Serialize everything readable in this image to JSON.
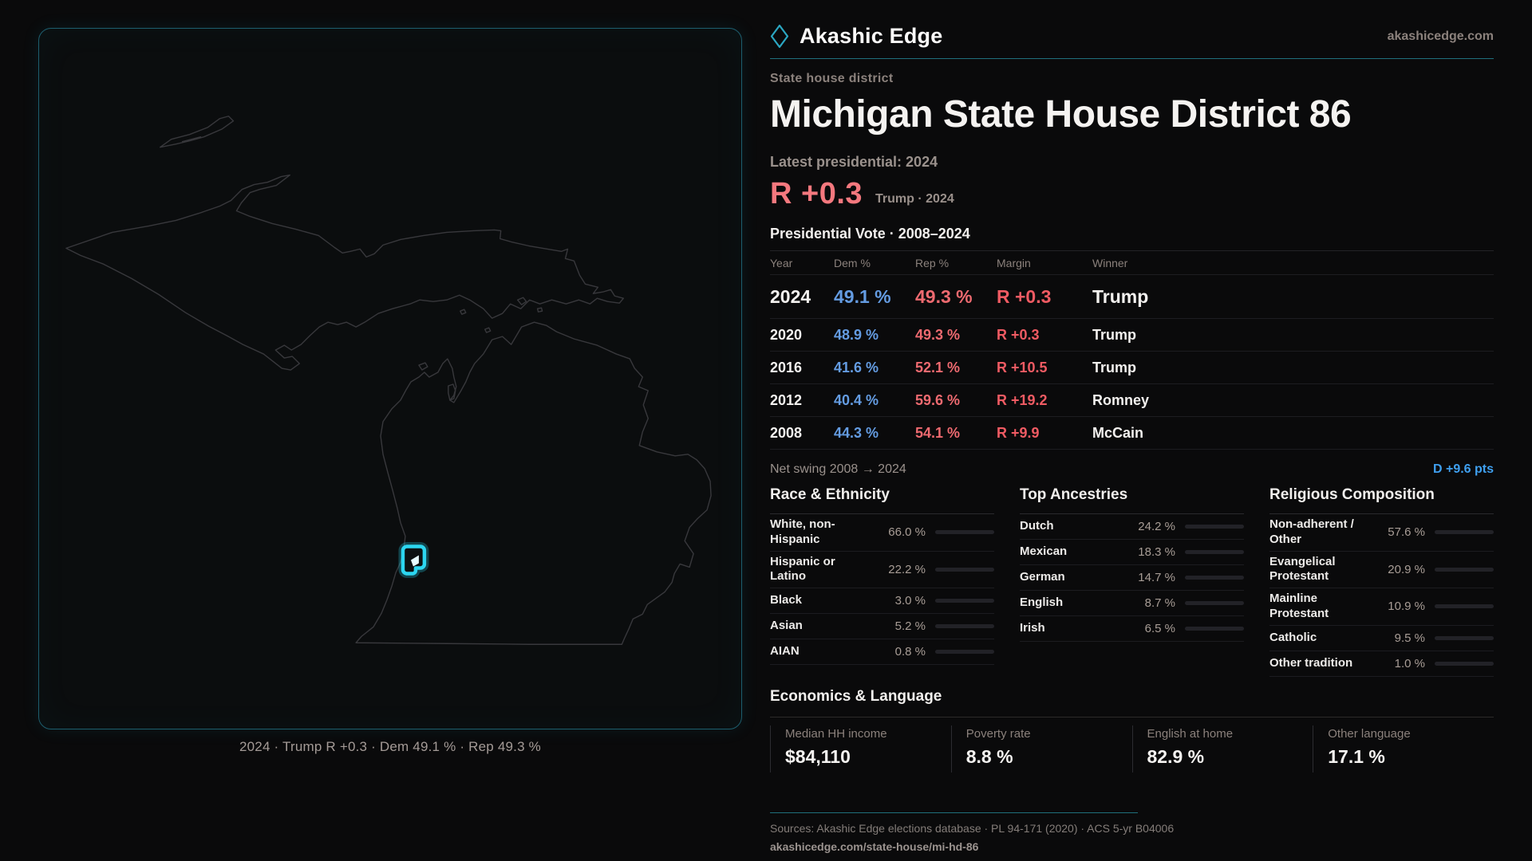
{
  "brand": {
    "name": "Akashic Edge",
    "site": "akashicedge.com"
  },
  "page": {
    "eyebrow": "State house district",
    "title": "Michigan State House District 86"
  },
  "headline": {
    "label": "Latest presidential: 2024",
    "stat": "R +0.3",
    "sub": "Trump · 2024"
  },
  "vote_table": {
    "title": "Presidential Vote · 2008–2024",
    "columns": [
      "Year",
      "Dem %",
      "Rep %",
      "Margin",
      "Winner"
    ],
    "rows": [
      {
        "year": "2024",
        "dem": "49.1 %",
        "rep": "49.3 %",
        "margin": "R +0.3",
        "winner": "Trump"
      },
      {
        "year": "2020",
        "dem": "48.9 %",
        "rep": "49.3 %",
        "margin": "R +0.3",
        "winner": "Trump"
      },
      {
        "year": "2016",
        "dem": "41.6 %",
        "rep": "52.1 %",
        "margin": "R +10.5",
        "winner": "Trump"
      },
      {
        "year": "2012",
        "dem": "40.4 %",
        "rep": "59.6 %",
        "margin": "R +19.2",
        "winner": "Romney"
      },
      {
        "year": "2008",
        "dem": "44.3 %",
        "rep": "54.1 %",
        "margin": "R +9.9",
        "winner": "McCain"
      }
    ]
  },
  "net_swing": {
    "label": "Net swing 2008 → 2024",
    "value": "D +9.6 pts"
  },
  "race": {
    "title": "Race & Ethnicity",
    "rows": [
      {
        "label": "White, non-Hispanic",
        "value": "66.0 %",
        "pct": 66.0,
        "color": "#9db3d2"
      },
      {
        "label": "Hispanic or Latino",
        "value": "22.2 %",
        "pct": 22.2,
        "color": "#e7a63a"
      },
      {
        "label": "Black",
        "value": "3.0 %",
        "pct": 3.0,
        "color": "#8678e0"
      },
      {
        "label": "Asian",
        "value": "5.2 %",
        "pct": 5.2,
        "color": "#2fbf8f"
      },
      {
        "label": "AIAN",
        "value": "0.8 %",
        "pct": 0.8,
        "color": "#a9561f"
      }
    ]
  },
  "ancestries": {
    "title": "Top Ancestries",
    "rows": [
      {
        "label": "Dutch",
        "value": "24.2 %",
        "pct": 24.2,
        "color": "#8fa6c4"
      },
      {
        "label": "Mexican",
        "value": "18.3 %",
        "pct": 18.3,
        "color": "#e7a63a"
      },
      {
        "label": "German",
        "value": "14.7 %",
        "pct": 14.7,
        "color": "#8fa6c4"
      },
      {
        "label": "English",
        "value": "8.7 %",
        "pct": 8.7,
        "color": "#9fb2cc"
      },
      {
        "label": "Irish",
        "value": "6.5 %",
        "pct": 6.5,
        "color": "#9fb2cc"
      }
    ]
  },
  "religion": {
    "title": "Religious Composition",
    "rows": [
      {
        "label": "Non-adherent / Other",
        "value": "57.6 %",
        "pct": 57.6,
        "color": "#5b6474"
      },
      {
        "label": "Evangelical Protestant",
        "value": "20.9 %",
        "pct": 20.9,
        "color": "#e87e84"
      },
      {
        "label": "Mainline Protestant",
        "value": "10.9 %",
        "pct": 10.9,
        "color": "#4d9cf0"
      },
      {
        "label": "Catholic",
        "value": "9.5 %",
        "pct": 9.5,
        "color": "#eab52f"
      },
      {
        "label": "Other tradition",
        "value": "1.0 %",
        "pct": 1.0,
        "color": "#d0d0d0"
      }
    ]
  },
  "economics": {
    "title": "Economics & Language",
    "stats": [
      {
        "label": "Median HH income",
        "value": "$84,110"
      },
      {
        "label": "Poverty rate",
        "value": "8.8 %"
      },
      {
        "label": "English at home",
        "value": "82.9 %"
      },
      {
        "label": "Other language",
        "value": "17.1 %"
      }
    ]
  },
  "footer": {
    "sources": "Sources: Akashic Edge elections database · PL 94-171 (2020) · ACS 5-yr B04006",
    "url": "akashicedge.com/state-house/mi-hd-86"
  },
  "map": {
    "caption": "2024 · Trump R +0.3 · Dem 49.1 % · Rep 49.3 %",
    "district_color": "#2cd6f0",
    "outline_color": "#38383c"
  }
}
